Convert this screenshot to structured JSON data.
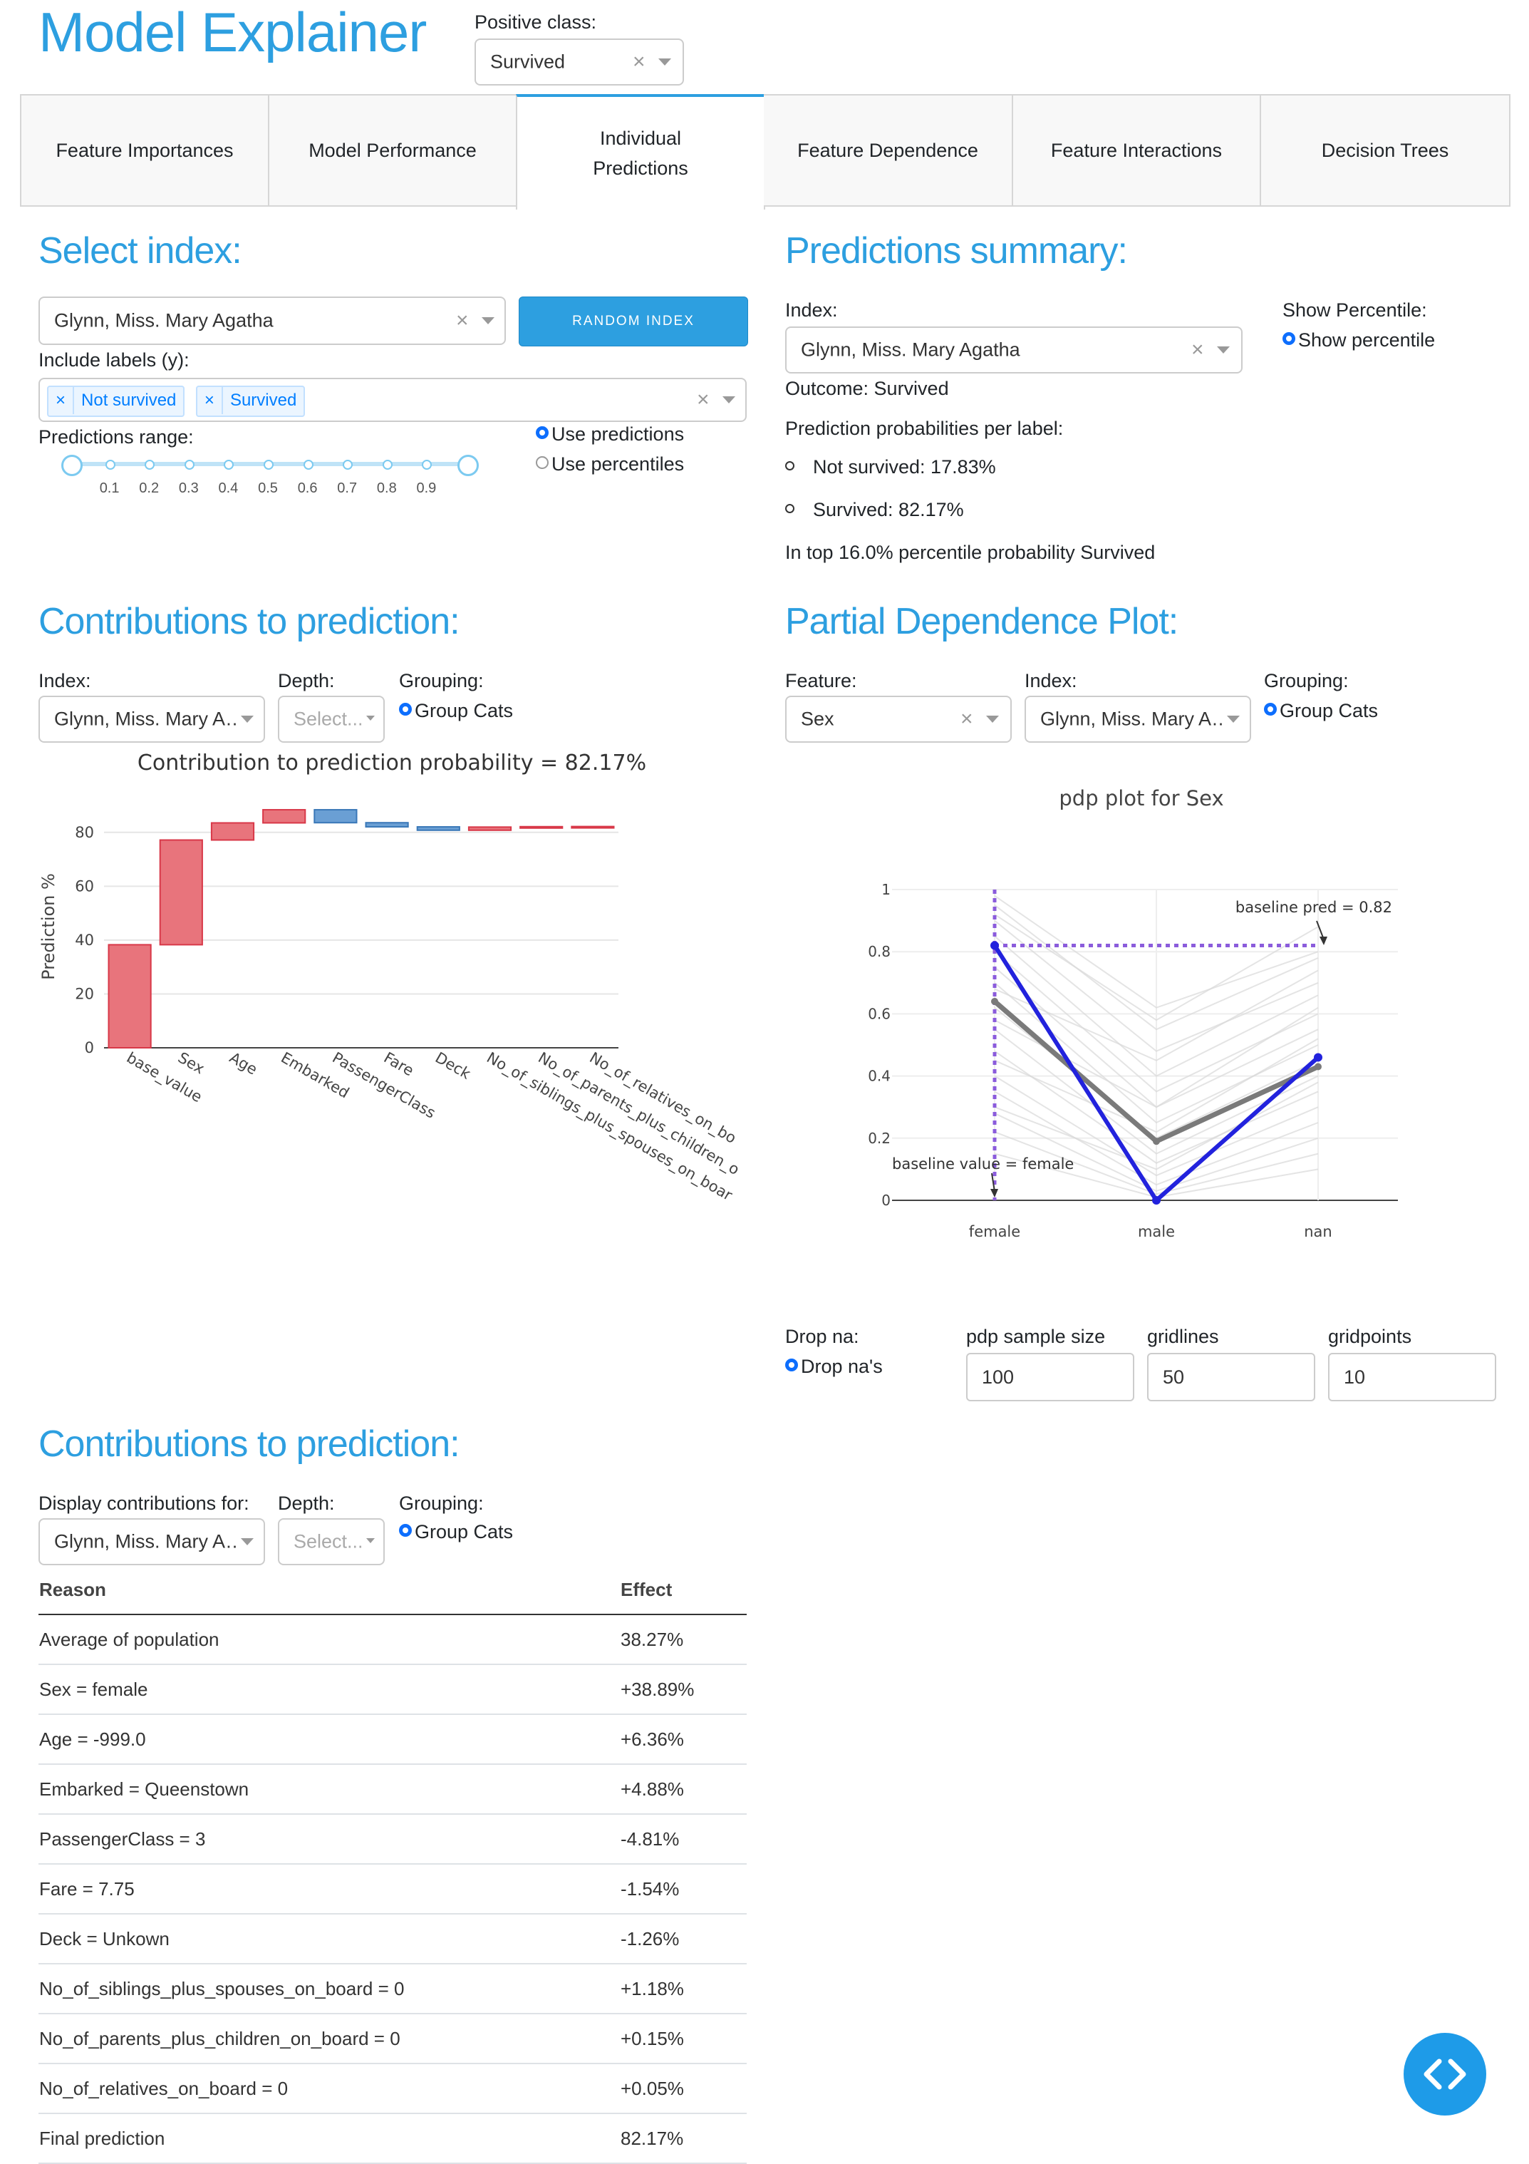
{
  "header": {
    "title": "Model Explainer",
    "positive_class_label": "Positive class:",
    "positive_class_value": "Survived"
  },
  "tabs": [
    {
      "label": "Feature Importances"
    },
    {
      "label": "Model Performance"
    },
    {
      "label": "Individual Predictions",
      "line1": "Individual",
      "line2": "Predictions",
      "active": true
    },
    {
      "label": "Feature Dependence"
    },
    {
      "label": "Feature Interactions"
    },
    {
      "label": "Decision Trees"
    }
  ],
  "select_index": {
    "title": "Select index:",
    "index_value": "Glynn, Miss. Mary Agatha",
    "random_button": "RANDOM INDEX",
    "include_labels_label": "Include labels (y):",
    "labels": [
      "Not survived",
      "Survived"
    ],
    "range_label": "Predictions range:",
    "slider_ticks": [
      "0.1",
      "0.2",
      "0.3",
      "0.4",
      "0.5",
      "0.6",
      "0.7",
      "0.8",
      "0.9"
    ],
    "slider_range": [
      0,
      1
    ],
    "radio_predictions": "Use predictions",
    "radio_percentiles": "Use percentiles"
  },
  "summary": {
    "title": "Predictions summary:",
    "index_label": "Index:",
    "index_value": "Glynn, Miss. Mary Agatha",
    "show_percentile_label": "Show Percentile:",
    "show_percentile_option": "Show percentile",
    "outcome": "Outcome: Survived",
    "probs_label": "Prediction probabilities per label:",
    "probs": [
      "Not survived: 17.83%",
      "Survived: 82.17%"
    ],
    "percentile_text": "In top 16.0% percentile probability Survived"
  },
  "contrib_graph": {
    "title": "Contributions to prediction:",
    "index_label": "Index:",
    "index_value": "Glynn, Miss. Mary A…",
    "depth_label": "Depth:",
    "depth_placeholder": "Select...",
    "grouping_label": "Grouping:",
    "grouping_option": "Group Cats"
  },
  "pdp": {
    "title": "Partial Dependence Plot:",
    "feature_label": "Feature:",
    "feature_value": "Sex",
    "index_label": "Index:",
    "index_value": "Glynn, Miss. Mary A…",
    "grouping_label": "Grouping:",
    "grouping_option": "Group Cats",
    "dropna_label": "Drop na:",
    "dropna_option": "Drop na's",
    "sample_label": "pdp sample size",
    "sample_value": "100",
    "gridlines_label": "gridlines",
    "gridlines_value": "50",
    "gridpoints_label": "gridpoints",
    "gridpoints_value": "10"
  },
  "contrib_table": {
    "title": "Contributions to prediction:",
    "display_label": "Display contributions for:",
    "index_value": "Glynn, Miss. Mary A…",
    "depth_label": "Depth:",
    "depth_placeholder": "Select...",
    "grouping_label": "Grouping:",
    "grouping_option": "Group Cats",
    "col_reason": "Reason",
    "col_effect": "Effect",
    "rows": [
      {
        "reason": "Average of population",
        "effect": "38.27%"
      },
      {
        "reason": "Sex = female",
        "effect": "+38.89%"
      },
      {
        "reason": "Age = -999.0",
        "effect": "+6.36%"
      },
      {
        "reason": "Embarked = Queenstown",
        "effect": "+4.88%"
      },
      {
        "reason": "PassengerClass = 3",
        "effect": "-4.81%"
      },
      {
        "reason": "Fare = 7.75",
        "effect": "-1.54%"
      },
      {
        "reason": "Deck = Unkown",
        "effect": "-1.26%"
      },
      {
        "reason": "No_of_siblings_plus_spouses_on_board = 0",
        "effect": "+1.18%"
      },
      {
        "reason": "No_of_parents_plus_children_on_board = 0",
        "effect": "+0.15%"
      },
      {
        "reason": "No_of_relatives_on_board = 0",
        "effect": "+0.05%"
      },
      {
        "reason": "Final prediction",
        "effect": "82.17%"
      }
    ]
  },
  "colors": {
    "accent": "#2d9fe0",
    "positive": "#e8747c",
    "negative": "#6a9fd4",
    "pdp_index": "#2222dd"
  },
  "chart_data": [
    {
      "type": "bar",
      "title": "Contribution to prediction probability = 82.17%",
      "ylabel": "Prediction %",
      "ylim": [
        0,
        90
      ],
      "yticks": [
        0,
        20,
        40,
        60,
        80
      ],
      "categories": [
        "base_value",
        "Sex",
        "Age",
        "Embarked",
        "PassengerClass",
        "Fare",
        "Deck",
        "No_of_siblings_plus_spouses_on_board",
        "No_of_parents_plus_children_on_board",
        "No_of_relatives_on_board"
      ],
      "tick_labels": [
        "base_value",
        "Sex",
        "Age",
        "Embarked",
        "PassengerClass",
        "Fare",
        "Deck",
        "No_of_siblings_plus_spouses_on_boar",
        "No_of_parents_plus_children_o",
        "No_of_relatives_on_bo"
      ],
      "values": [
        38.27,
        38.89,
        6.36,
        4.88,
        -4.81,
        -1.54,
        -1.26,
        1.18,
        0.15,
        0.05
      ]
    },
    {
      "type": "line",
      "title": "pdp plot for Sex",
      "categories": [
        "female",
        "male",
        "nan"
      ],
      "ylim": [
        0,
        1
      ],
      "yticks": [
        "0",
        "0.2",
        "0.4",
        "0.6",
        "0.8",
        "1"
      ],
      "series": [
        {
          "values": [
            0.64,
            0.19,
            0.43
          ]
        },
        {
          "values": [
            0.82,
            0.0,
            0.46
          ]
        }
      ],
      "baseline_pred": 0.82,
      "annotations": [
        "baseline pred = 0.82",
        "baseline value = female"
      ]
    }
  ]
}
